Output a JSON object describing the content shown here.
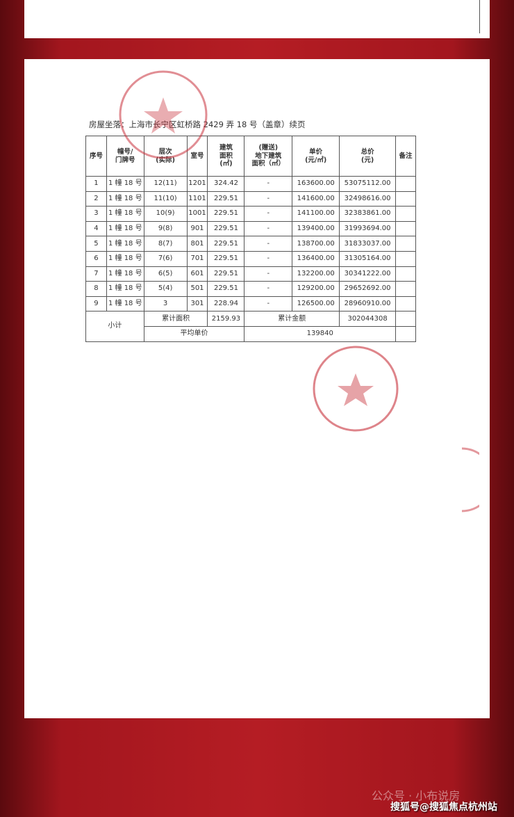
{
  "location": "房屋坐落：上海市长宁区虹桥路 2429 弄 18 号（盖章）续页",
  "headers": [
    "序号",
    "幢号/\n门牌号",
    "层次\n(实际)",
    "室号",
    "建筑\n面积\n(㎡)",
    "(赠送)\n地下建筑\n面积（㎡）",
    "单价\n(元/㎡)",
    "总价\n(元)",
    "备注"
  ],
  "rows": [
    [
      "1",
      "1 幢 18 号",
      "12(11)",
      "1201",
      "324.42",
      "-",
      "163600.00",
      "53075112.00",
      ""
    ],
    [
      "2",
      "1 幢 18 号",
      "11(10)",
      "1101",
      "229.51",
      "-",
      "141600.00",
      "32498616.00",
      ""
    ],
    [
      "3",
      "1 幢 18 号",
      "10(9)",
      "1001",
      "229.51",
      "-",
      "141100.00",
      "32383861.00",
      ""
    ],
    [
      "4",
      "1 幢 18 号",
      "9(8)",
      "901",
      "229.51",
      "-",
      "139400.00",
      "31993694.00",
      ""
    ],
    [
      "5",
      "1 幢 18 号",
      "8(7)",
      "801",
      "229.51",
      "-",
      "138700.00",
      "31833037.00",
      ""
    ],
    [
      "6",
      "1 幢 18 号",
      "7(6)",
      "701",
      "229.51",
      "-",
      "136400.00",
      "31305164.00",
      ""
    ],
    [
      "7",
      "1 幢 18 号",
      "6(5)",
      "601",
      "229.51",
      "-",
      "132200.00",
      "30341222.00",
      ""
    ],
    [
      "8",
      "1 幢 18 号",
      "5(4)",
      "501",
      "229.51",
      "-",
      "129200.00",
      "29652692.00",
      ""
    ],
    [
      "9",
      "1 幢 18 号",
      "3",
      "301",
      "228.94",
      "-",
      "126500.00",
      "28960910.00",
      ""
    ]
  ],
  "subtotal": {
    "label": "小计",
    "area_label": "累计面积",
    "area": "2159.93",
    "amount_label": "累计金额",
    "amount": "302044308",
    "avg_label": "平均单价",
    "avg": "139840"
  },
  "stamp_color": "#c8323c",
  "watermark": "公众号 · 小布说房",
  "sohu": "搜狐号@搜狐焦点杭州站"
}
